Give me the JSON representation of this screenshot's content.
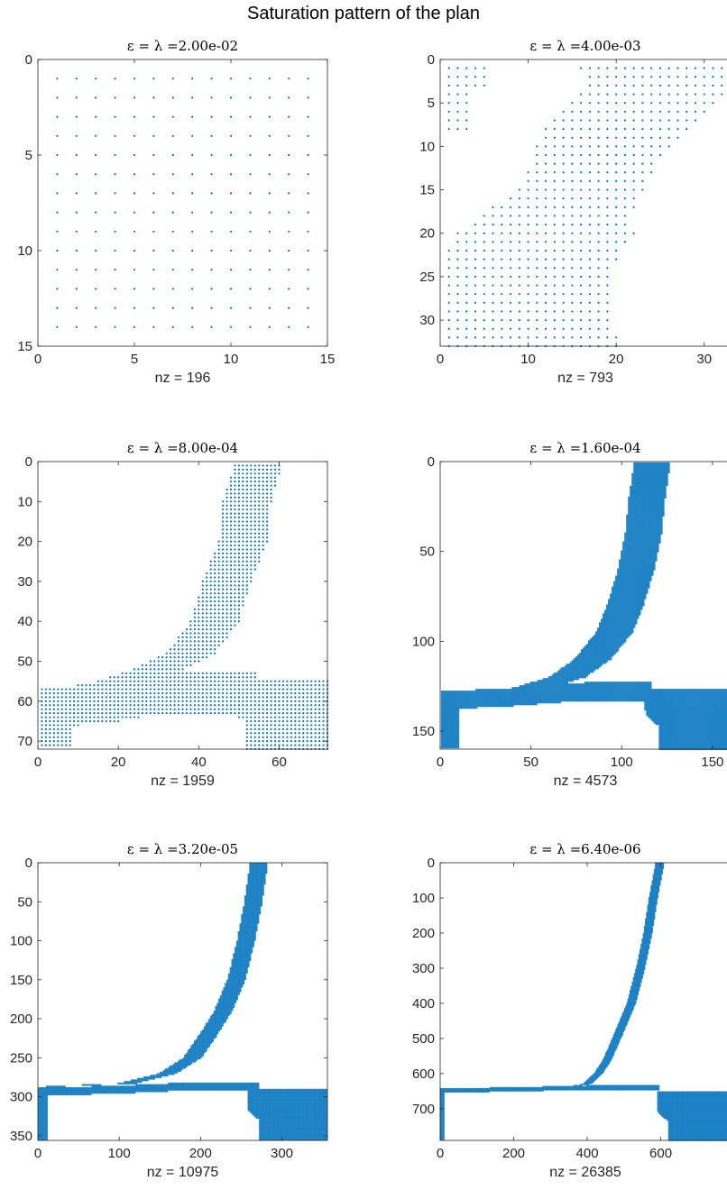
{
  "figure_title": "Saturation pattern of the plan",
  "colors": {
    "marker": "#0072BD",
    "axes": "#262626"
  },
  "chart_data": [
    {
      "type": "spy",
      "title": "ε = λ =2.00e-02",
      "xlabel": "nz = 196",
      "xlim": [
        0,
        15
      ],
      "ylim": [
        0,
        15
      ],
      "y_reversed": true,
      "xticks": [
        0,
        5,
        10,
        15
      ],
      "yticks": [
        0,
        5,
        10,
        15
      ],
      "n": 14,
      "nz": 196,
      "pattern": {
        "kind": "full",
        "step": 1
      }
    },
    {
      "type": "spy",
      "title": "ε = λ =4.00e-03",
      "xlabel": "nz = 793",
      "xlim": [
        0,
        33
      ],
      "ylim": [
        0,
        33
      ],
      "y_reversed": true,
      "xticks": [
        0,
        10,
        20,
        30
      ],
      "yticks": [
        0,
        5,
        10,
        15,
        20,
        25,
        30
      ],
      "n": 33,
      "nz": 793,
      "pattern": {
        "kind": "band",
        "step": 1,
        "center": [
          [
            1,
            25
          ],
          [
            3,
            25
          ],
          [
            5,
            23
          ],
          [
            8,
            20
          ],
          [
            11,
            18
          ],
          [
            15,
            16
          ],
          [
            18,
            13
          ],
          [
            20,
            12
          ],
          [
            24,
            9
          ],
          [
            32,
            8
          ]
        ],
        "halfwidth": [
          [
            1,
            9
          ],
          [
            8,
            8
          ],
          [
            15,
            7
          ],
          [
            20,
            10
          ],
          [
            32,
            12
          ]
        ],
        "extra": [
          [
            1,
            3,
            1,
            5
          ],
          [
            4,
            8,
            1,
            3
          ]
        ]
      }
    },
    {
      "type": "spy",
      "title": "ε = λ =8.00e-04",
      "xlabel": "nz = 1959",
      "xlim": [
        0,
        72
      ],
      "ylim": [
        0,
        72
      ],
      "y_reversed": true,
      "xticks": [
        0,
        20,
        40,
        60
      ],
      "yticks": [
        0,
        10,
        20,
        30,
        40,
        50,
        60,
        70
      ],
      "n": 72,
      "nz": 1959,
      "pattern": {
        "kind": "corner",
        "step": 1,
        "steep_x": [
          [
            0,
            55
          ],
          [
            10,
            52
          ],
          [
            20,
            51
          ],
          [
            30,
            47
          ],
          [
            40,
            44
          ],
          [
            48,
            38
          ],
          [
            52,
            30
          ],
          [
            56,
            18
          ],
          [
            60,
            8
          ],
          [
            64,
            2
          ]
        ],
        "steep_hw": 6,
        "flat_y": [
          [
            0,
            62
          ],
          [
            10,
            61
          ],
          [
            20,
            60
          ],
          [
            30,
            58
          ]
        ],
        "flat_hw": 5,
        "br_y": [
          48,
          72
        ],
        "br_x": [
          55,
          72
        ]
      }
    },
    {
      "type": "spy",
      "title": "ε = λ =1.60e-04",
      "xlabel": "nz = 4573",
      "xlim": [
        0,
        160
      ],
      "ylim": [
        0,
        160
      ],
      "y_reversed": true,
      "xticks": [
        0,
        50,
        100,
        150
      ],
      "yticks": [
        0,
        50,
        100,
        150
      ],
      "n": 160,
      "nz": 4573,
      "pattern": {
        "kind": "corner",
        "step": 1,
        "steep_x": [
          [
            0,
            117
          ],
          [
            20,
            114
          ],
          [
            40,
            112
          ],
          [
            60,
            108
          ],
          [
            80,
            102
          ],
          [
            95,
            96
          ],
          [
            110,
            84
          ],
          [
            120,
            70
          ],
          [
            126,
            50
          ],
          [
            130,
            25
          ],
          [
            133,
            0
          ]
        ],
        "steep_hw": 10,
        "flat_y": [
          [
            0,
            133
          ],
          [
            40,
            131
          ],
          [
            80,
            128
          ]
        ],
        "flat_hw": 5,
        "br_y": [
          113,
          160
        ],
        "br_x": [
          127,
          160
        ]
      }
    },
    {
      "type": "spy",
      "title": "ε = λ =3.20e-05",
      "xlabel": "nz = 10975",
      "xlim": [
        0,
        356
      ],
      "ylim": [
        0,
        356
      ],
      "y_reversed": true,
      "xticks": [
        0,
        100,
        200,
        300
      ],
      "yticks": [
        0,
        50,
        100,
        150,
        200,
        250,
        300,
        350
      ],
      "n": 356,
      "nz": 10975,
      "pattern": {
        "kind": "corner",
        "step": 2,
        "steep_x": [
          [
            0,
            272
          ],
          [
            50,
            265
          ],
          [
            100,
            256
          ],
          [
            150,
            244
          ],
          [
            190,
            228
          ],
          [
            220,
            210
          ],
          [
            250,
            190
          ],
          [
            270,
            160
          ],
          [
            283,
            110
          ],
          [
            288,
            0
          ]
        ],
        "steep_hw": 11,
        "flat_y": [
          [
            0,
            294
          ],
          [
            100,
            291
          ],
          [
            180,
            287
          ]
        ],
        "flat_hw": 5,
        "br_y": [
          258,
          356
        ],
        "br_x": [
          290,
          356
        ]
      }
    },
    {
      "type": "spy",
      "title": "ε = λ =6.40e-06",
      "xlabel": "nz = 26385",
      "xlim": [
        0,
        790
      ],
      "ylim": [
        0,
        790
      ],
      "y_reversed": true,
      "xticks": [
        0,
        200,
        400,
        600
      ],
      "yticks": [
        0,
        100,
        200,
        300,
        400,
        500,
        600,
        700
      ],
      "n": 790,
      "nz": 26385,
      "pattern": {
        "kind": "corner",
        "step": 3,
        "steep_x": [
          [
            0,
            598
          ],
          [
            100,
            580
          ],
          [
            200,
            565
          ],
          [
            300,
            545
          ],
          [
            400,
            520
          ],
          [
            450,
            500
          ],
          [
            500,
            480
          ],
          [
            560,
            455
          ],
          [
            600,
            430
          ],
          [
            630,
            400
          ],
          [
            645,
            300
          ],
          [
            650,
            0
          ]
        ],
        "steep_hw": 12,
        "flat_y": [
          [
            0,
            648
          ],
          [
            200,
            645
          ],
          [
            400,
            640
          ]
        ],
        "flat_hw": 6,
        "br_y": [
          590,
          790
        ],
        "br_x": [
          650,
          790
        ]
      }
    }
  ]
}
